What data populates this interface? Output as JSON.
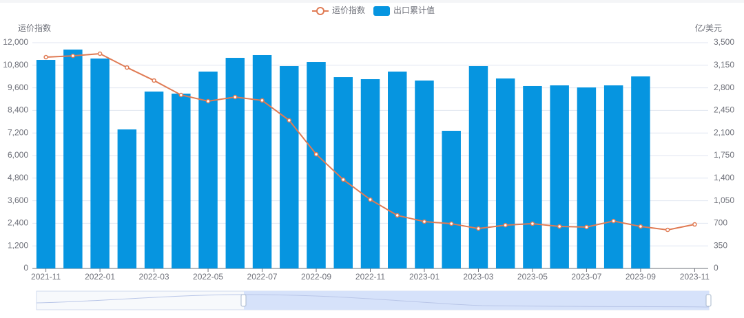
{
  "chart_data": {
    "type": "bar",
    "y_axis_label": "运价指数",
    "y2_axis_label": "亿/美元",
    "categories": [
      "2021-11",
      null,
      "2022-01",
      null,
      "2022-03",
      null,
      "2022-05",
      null,
      "2022-07",
      null,
      "2022-09",
      null,
      "2022-11",
      null,
      "2023-01",
      null,
      "2023-03",
      null,
      "2023-05",
      null,
      "2023-07",
      null,
      "2023-09",
      null,
      "2023-11"
    ],
    "series": [
      {
        "name": "运价指数",
        "type": "line",
        "axis": "y",
        "color": "#e07b54",
        "values": [
          11230,
          11300,
          11415,
          10680,
          9990,
          9220,
          8890,
          9110,
          8930,
          7870,
          6070,
          4720,
          3660,
          2820,
          2490,
          2380,
          2120,
          2300,
          2380,
          2230,
          2200,
          2520,
          2230,
          2050,
          2340
        ]
      },
      {
        "name": "出口累计值",
        "type": "bar",
        "axis": "y2",
        "color": "#0695e0",
        "values": [
          3233,
          3393,
          3254,
          2155,
          2742,
          2710,
          3052,
          3265,
          3308,
          3137,
          3201,
          2966,
          2934,
          3052,
          2913,
          2134,
          3137,
          2945,
          2828,
          2838,
          2806,
          2838,
          2977,
          null,
          null
        ]
      }
    ],
    "ylim": [
      0,
      12000
    ],
    "yticks": [
      0,
      {
        "value": 1200,
        "label": "1,200"
      },
      {
        "value": 2400,
        "label": "2,400"
      },
      {
        "value": 3600,
        "label": "3,600"
      },
      {
        "value": 4800,
        "label": "4,800"
      },
      {
        "value": 6000,
        "label": "6,000"
      },
      {
        "value": 7200,
        "label": "7,200"
      },
      {
        "value": 8400,
        "label": "8,400"
      },
      {
        "value": 9600,
        "label": "9,600"
      },
      {
        "value": 10800,
        "label": "10,800"
      },
      {
        "value": 12000,
        "label": "12,000"
      }
    ],
    "y2lim": [
      0,
      3500
    ],
    "y2ticks": [
      0,
      350,
      700,
      {
        "value": 1050,
        "label": "1,050"
      },
      {
        "value": 1400,
        "label": "1,400"
      },
      {
        "value": 1750,
        "label": "1,750"
      },
      {
        "value": 2100,
        "label": "2,100"
      },
      {
        "value": 2450,
        "label": "2,450"
      },
      {
        "value": 2800,
        "label": "2,800"
      },
      {
        "value": 3150,
        "label": "3,150"
      },
      {
        "value": 3500,
        "label": "3,500"
      }
    ],
    "grid": true
  }
}
